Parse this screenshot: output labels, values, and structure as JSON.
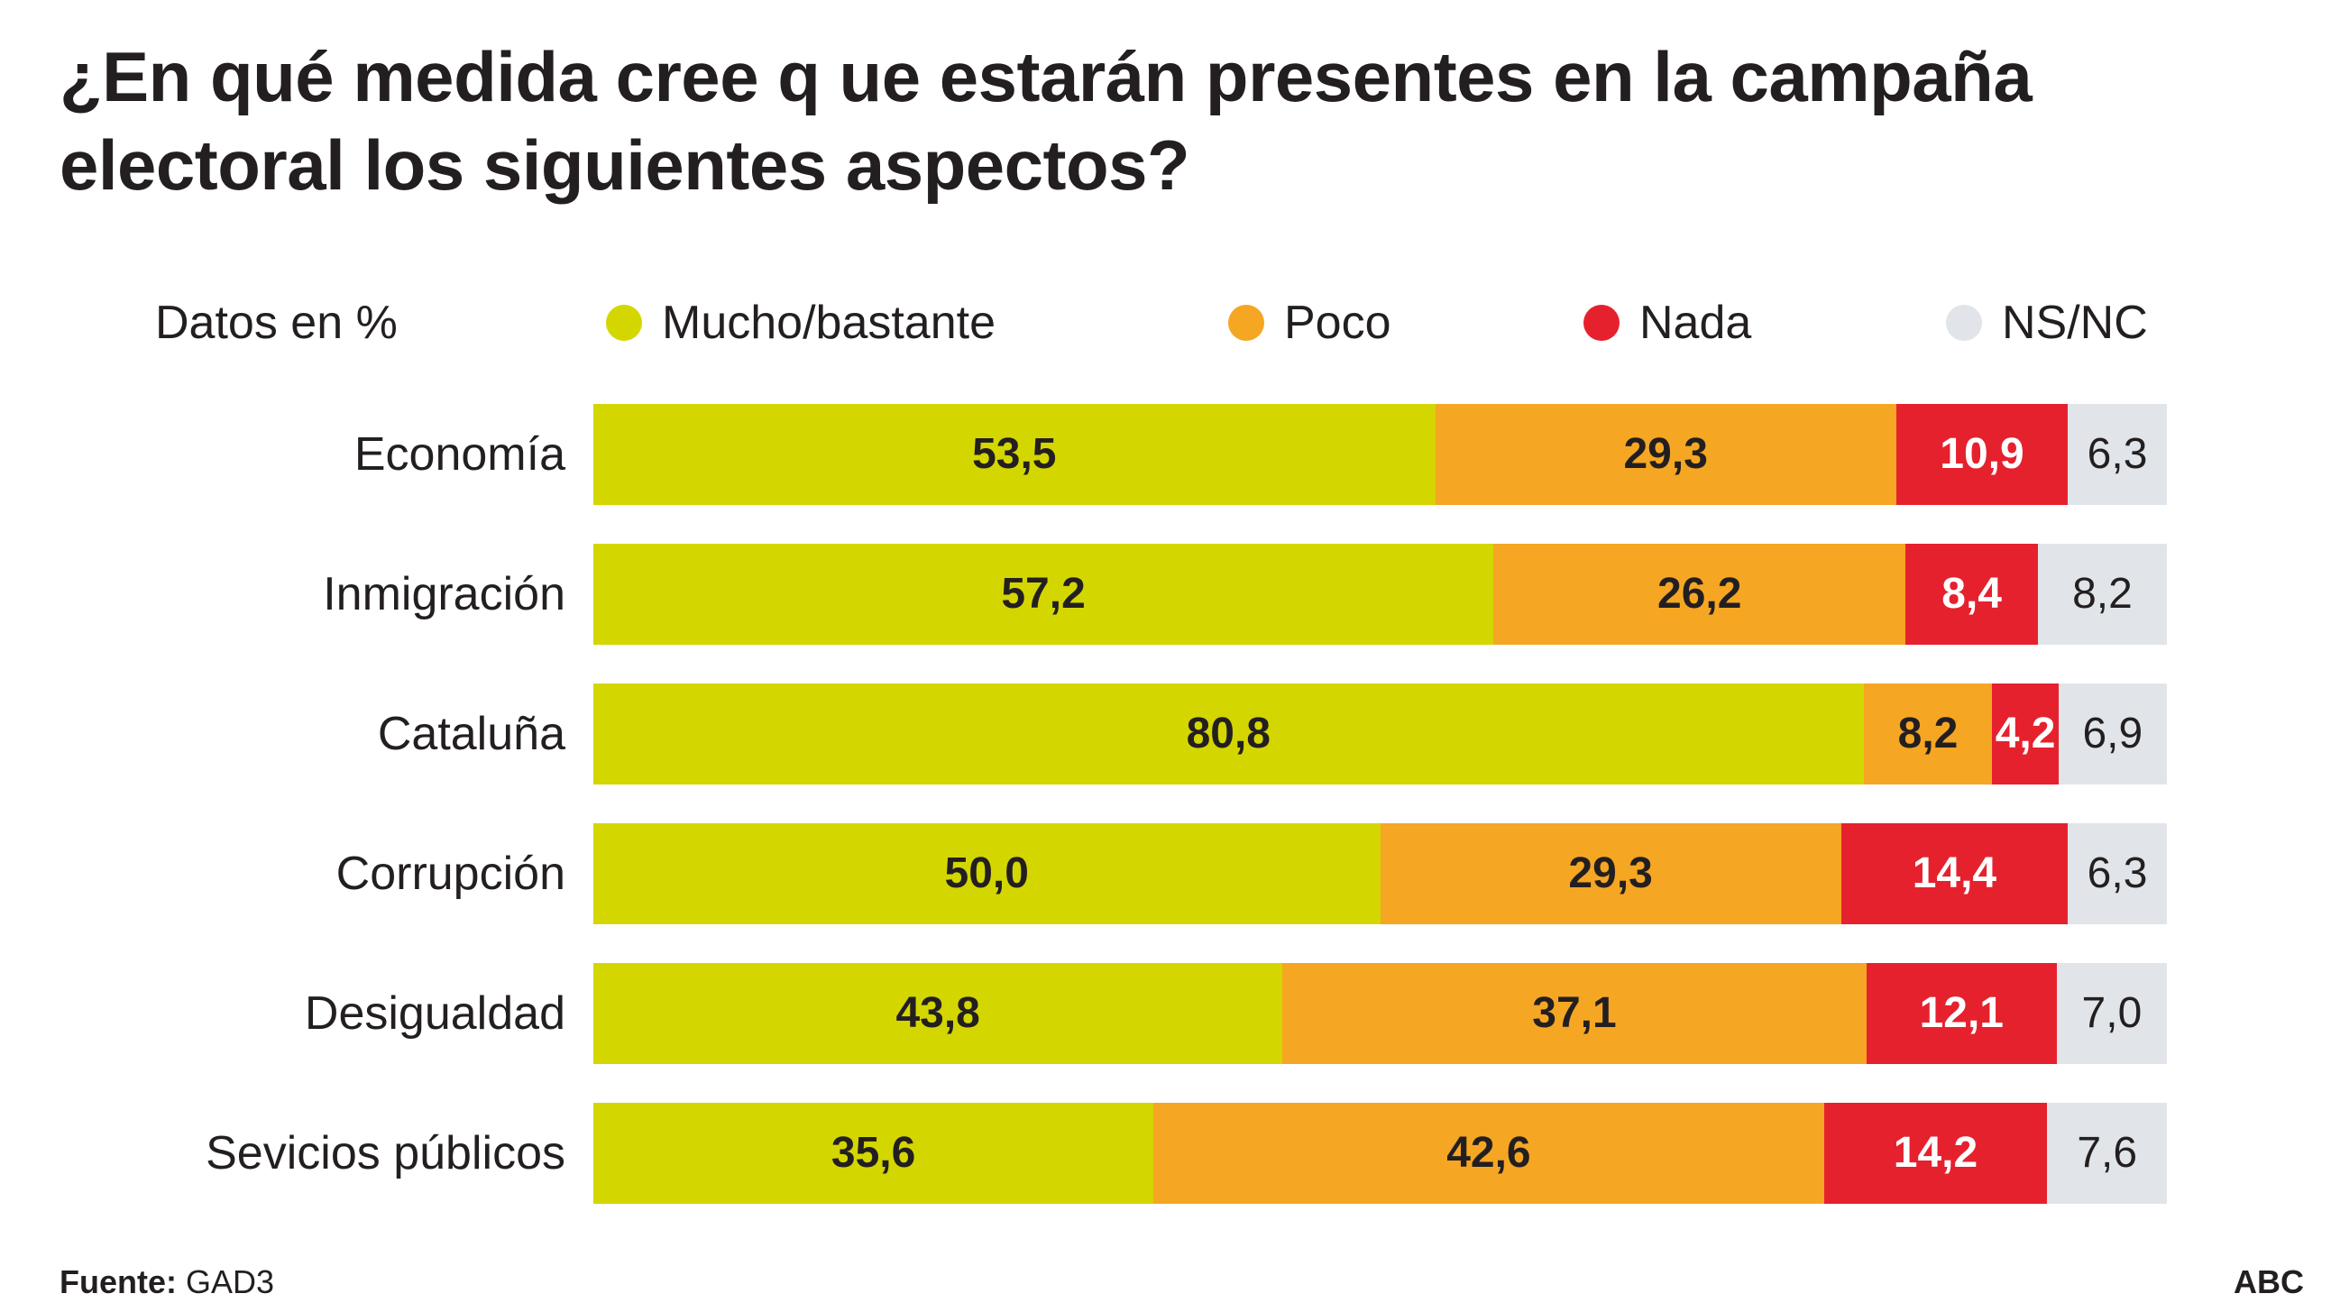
{
  "chart_data": {
    "type": "bar",
    "orientation": "horizontal",
    "stacked": true,
    "title": "¿En qué medida cree q ue estarán presentes en la campaña electoral los siguientes aspectos?",
    "unit_note": "Datos en %",
    "categories": [
      "Economía",
      "Inmigración",
      "Cataluña",
      "Corrupción",
      "Desigualdad",
      "Sevicios públicos"
    ],
    "series": [
      {
        "name": "Mucho/bastante",
        "color": "#d4d600",
        "values": [
          "53,5",
          "57,2",
          "80,8",
          "50,0",
          "43,8",
          "35,6"
        ]
      },
      {
        "name": "Poco",
        "color": "#f5a623",
        "values": [
          "29,3",
          "26,2",
          "8,2",
          "29,3",
          "37,1",
          "42,6"
        ]
      },
      {
        "name": "Nada",
        "color": "#e6212e",
        "values": [
          "10,9",
          "8,4",
          "4,2",
          "14,4",
          "12,1",
          "14,2"
        ]
      },
      {
        "name": "NS/NC",
        "color": "#e1e4e8",
        "values": [
          "6,3",
          "8,2",
          "6,9",
          "6,3",
          "7,0",
          "7,6"
        ]
      }
    ],
    "xlim": [
      0,
      100
    ],
    "legend_position": "top",
    "grid": false
  },
  "footer": {
    "source_label": "Fuente:",
    "source_value": "GAD3",
    "brand": "ABC"
  }
}
